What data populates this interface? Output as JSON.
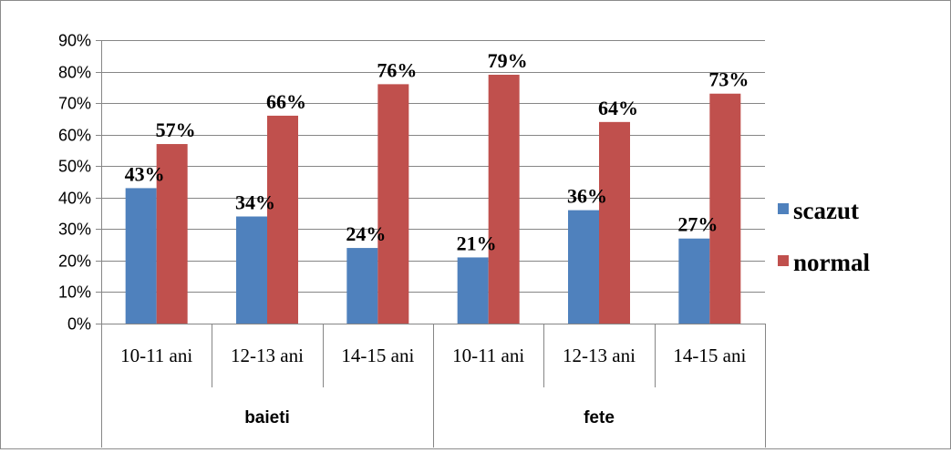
{
  "chart_data": {
    "type": "bar",
    "groups": [
      {
        "label": "baieti",
        "categories": [
          "10-11 ani",
          "12-13 ani",
          "14-15 ani"
        ]
      },
      {
        "label": "fete",
        "categories": [
          "10-11 ani",
          "12-13 ani",
          "14-15 ani"
        ]
      }
    ],
    "series": [
      {
        "name": "scazut",
        "color": "#4f81bd",
        "values": [
          43,
          34,
          24,
          21,
          36,
          27
        ]
      },
      {
        "name": "normal",
        "color": "#c0504d",
        "values": [
          57,
          66,
          76,
          79,
          64,
          73
        ]
      }
    ],
    "ylim": [
      0,
      90
    ],
    "yticks": [
      "0%",
      "10%",
      "20%",
      "30%",
      "40%",
      "50%",
      "60%",
      "70%",
      "80%",
      "90%"
    ],
    "value_format": "percent",
    "grid": true,
    "legend_position": "right"
  }
}
